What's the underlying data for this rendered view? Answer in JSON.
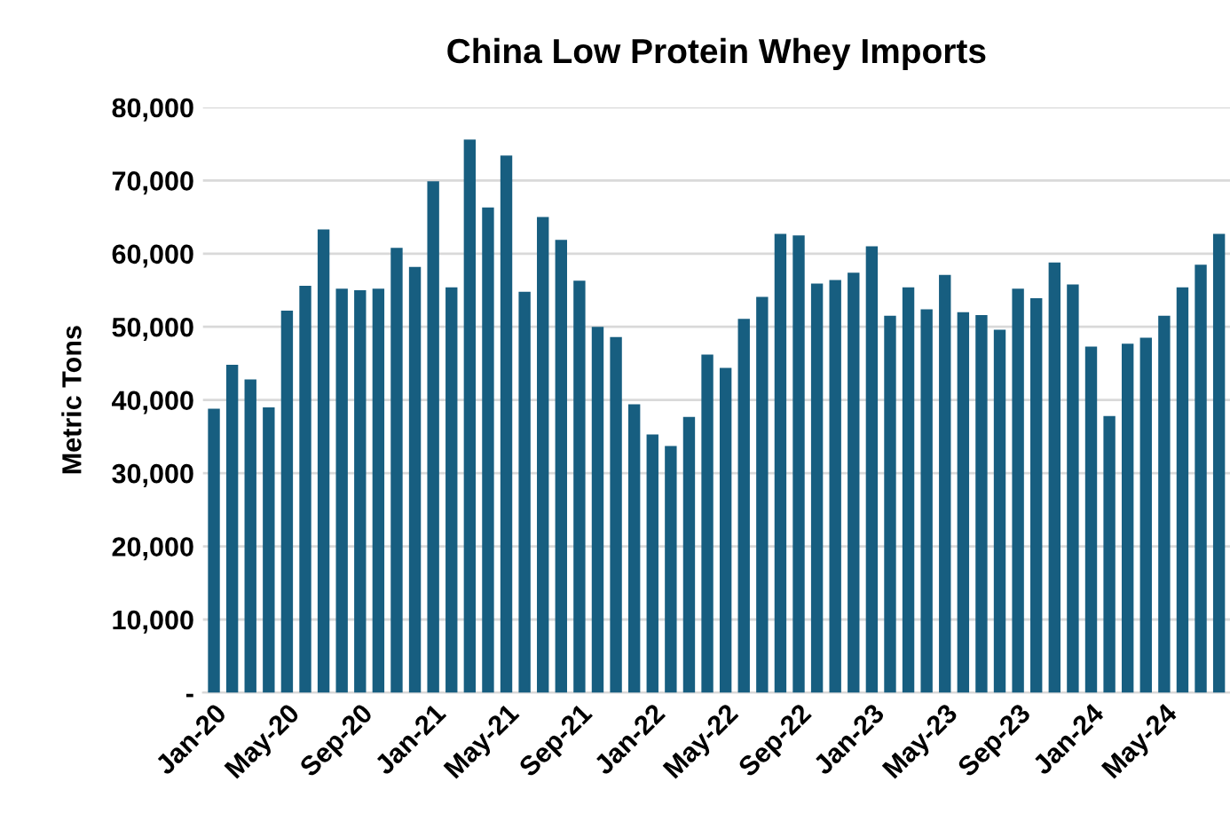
{
  "chart_data": {
    "type": "bar",
    "title": "China Low Protein Whey Imports",
    "ylabel": "Metric Tons",
    "categories": [
      "Jan-20",
      null,
      null,
      null,
      "May-20",
      null,
      null,
      null,
      "Sep-20",
      null,
      null,
      null,
      "Jan-21",
      null,
      null,
      null,
      "May-21",
      null,
      null,
      null,
      "Sep-21",
      null,
      null,
      null,
      "Jan-22",
      null,
      null,
      null,
      "May-22",
      null,
      null,
      null,
      "Sep-22",
      null,
      null,
      null,
      "Jan-23",
      null,
      null,
      null,
      "May-23",
      null,
      null,
      null,
      "Sep-23",
      null,
      null,
      null,
      "Jan-24",
      null,
      null,
      null,
      "May-24",
      null,
      null,
      null
    ],
    "values": [
      38800,
      44800,
      42800,
      39000,
      52200,
      55600,
      63300,
      55200,
      55000,
      55200,
      60800,
      58200,
      69900,
      55400,
      75600,
      66300,
      73400,
      54800,
      65000,
      61900,
      56300,
      50000,
      48600,
      39400,
      35300,
      33700,
      37700,
      46200,
      44400,
      51100,
      54100,
      62700,
      62500,
      55900,
      56400,
      57400,
      61000,
      51500,
      55400,
      52400,
      57100,
      52000,
      51600,
      49600,
      55200,
      53900,
      58800,
      55800,
      47300,
      37800,
      47700,
      48500,
      51500,
      55400,
      58500,
      62700
    ],
    "color": "#175e80",
    "ylim": [
      0,
      80000
    ],
    "yticks": [
      {
        "value": 0,
        "label": "-"
      },
      {
        "value": 10000,
        "label": "10,000"
      },
      {
        "value": 20000,
        "label": "20,000"
      },
      {
        "value": 30000,
        "label": "30,000"
      },
      {
        "value": 40000,
        "label": "40,000"
      },
      {
        "value": 50000,
        "label": "50,000"
      },
      {
        "value": 60000,
        "label": "60,000"
      },
      {
        "value": 70000,
        "label": "70,000"
      },
      {
        "value": 80000,
        "label": "80,000"
      }
    ],
    "grid": "y"
  }
}
